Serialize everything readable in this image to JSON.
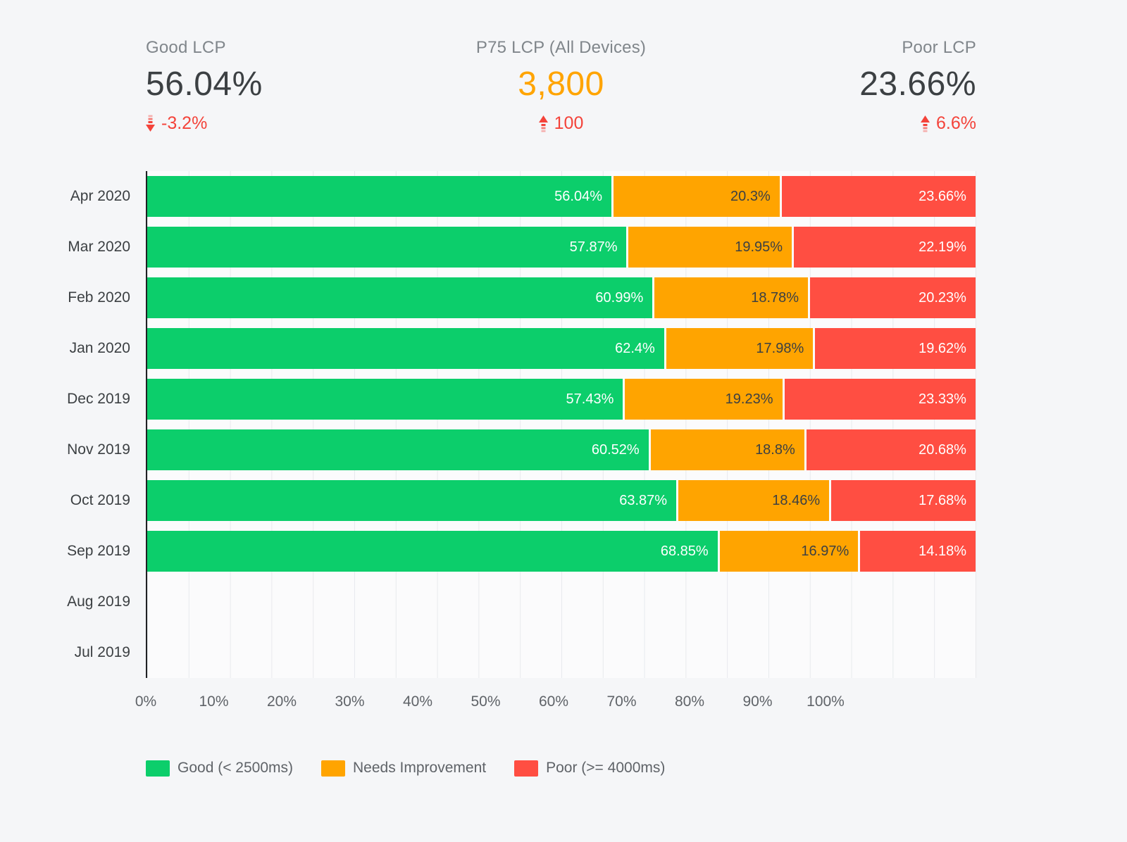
{
  "kpis": [
    {
      "title": "Good LCP",
      "value": "56.04%",
      "value_color": "#3c4043",
      "delta": "-3.2%",
      "direction": "down"
    },
    {
      "title": "P75 LCP (All Devices)",
      "value": "3,800",
      "value_color": "#ffa400",
      "delta": "100",
      "direction": "up"
    },
    {
      "title": "Poor LCP",
      "value": "23.66%",
      "value_color": "#3c4043",
      "delta": "6.6%",
      "direction": "up"
    }
  ],
  "colors": {
    "good": "#0cce6b",
    "needs_improvement": "#ffa400",
    "poor": "#ff4e42",
    "delta_red": "#f4433a",
    "page_bg": "#f5f6f8",
    "plot_bg": "#fbfbfc",
    "axis_text": "#5f6368"
  },
  "chart_data": {
    "type": "bar",
    "orientation": "horizontal",
    "stacked": true,
    "title": "",
    "xlabel": "",
    "ylabel": "",
    "xlim": [
      0,
      100
    ],
    "value_suffix": "%",
    "grid": "vertical minor gridlines every 5%",
    "legend_position": "bottom-left",
    "categories": [
      "Apr 2020",
      "Mar 2020",
      "Feb 2020",
      "Jan 2020",
      "Dec 2019",
      "Nov 2019",
      "Oct 2019",
      "Sep 2019",
      "Aug 2019",
      "Jul 2019"
    ],
    "series": [
      {
        "name": "Good (< 2500ms)",
        "color": "#0cce6b",
        "label_color": "#ffffff",
        "values": [
          56.04,
          57.87,
          60.99,
          62.4,
          57.43,
          60.52,
          63.87,
          68.85,
          null,
          null
        ]
      },
      {
        "name": "Needs Improvement",
        "color": "#ffa400",
        "label_color": "#3c4043",
        "values": [
          20.3,
          19.95,
          18.78,
          17.98,
          19.23,
          18.8,
          18.46,
          16.97,
          null,
          null
        ]
      },
      {
        "name": "Poor (>= 4000ms)",
        "color": "#ff4e42",
        "label_color": "#ffffff",
        "values": [
          23.66,
          22.19,
          20.23,
          19.62,
          23.33,
          20.68,
          17.68,
          14.18,
          null,
          null
        ]
      }
    ],
    "x_ticks": [
      "0%",
      "10%",
      "20%",
      "30%",
      "40%",
      "50%",
      "60%",
      "70%",
      "80%",
      "90%",
      "100%"
    ]
  }
}
